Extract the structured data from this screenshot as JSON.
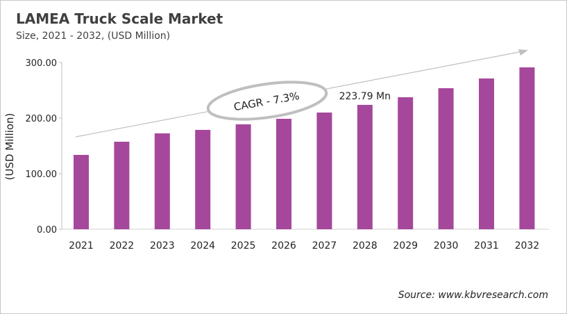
{
  "title": "LAMEA Truck Scale Market",
  "subtitle": "Size, 2021 - 2032, (USD Million)",
  "source": "Source: www.kbvresearch.com",
  "chart_data": {
    "type": "bar",
    "categories": [
      "2021",
      "2022",
      "2023",
      "2024",
      "2025",
      "2026",
      "2027",
      "2028",
      "2029",
      "2030",
      "2031",
      "2032"
    ],
    "values": [
      133.8,
      157.5,
      172.5,
      178.8,
      188.8,
      198.8,
      210.0,
      223.79,
      237.5,
      253.8,
      271.3,
      291.3
    ],
    "ylabel": "(USD Million)",
    "ylim": [
      0,
      300
    ],
    "yticks": [
      "0.00",
      "100.00",
      "200.00",
      "300.00"
    ],
    "bar_color": "#a5489b",
    "annotations": {
      "cagr": "CAGR - 7.3%",
      "data_label": "223.79 Mn",
      "data_label_category": "2028"
    },
    "grid": false,
    "legend": "none"
  }
}
